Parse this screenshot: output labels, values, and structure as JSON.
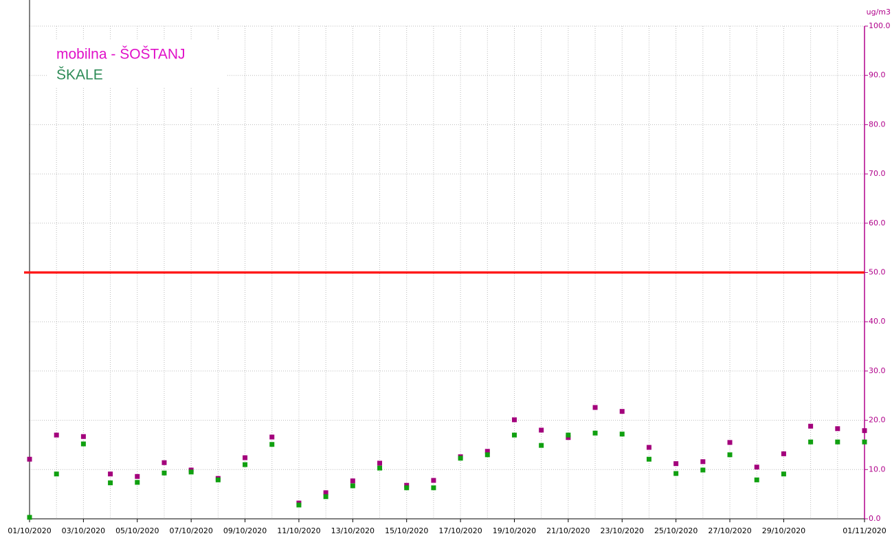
{
  "chart_data": {
    "type": "scatter",
    "y_unit": "ug/m3",
    "x": [
      "01/10/2020",
      "02/10/2020",
      "03/10/2020",
      "04/10/2020",
      "05/10/2020",
      "06/10/2020",
      "07/10/2020",
      "08/10/2020",
      "09/10/2020",
      "10/10/2020",
      "11/10/2020",
      "12/10/2020",
      "13/10/2020",
      "14/10/2020",
      "15/10/2020",
      "16/10/2020",
      "17/10/2020",
      "18/10/2020",
      "19/10/2020",
      "20/10/2020",
      "21/10/2020",
      "22/10/2020",
      "23/10/2020",
      "24/10/2020",
      "25/10/2020",
      "26/10/2020",
      "27/10/2020",
      "28/10/2020",
      "29/10/2020",
      "30/10/2020",
      "31/10/2020",
      "01/11/2020"
    ],
    "xticks": [
      "01/10/2020",
      "03/10/2020",
      "05/10/2020",
      "07/10/2020",
      "09/10/2020",
      "11/10/2020",
      "13/10/2020",
      "15/10/2020",
      "17/10/2020",
      "19/10/2020",
      "21/10/2020",
      "23/10/2020",
      "25/10/2020",
      "27/10/2020",
      "29/10/2020",
      "01/11/2020"
    ],
    "series": [
      {
        "name": "mobilna - ŠOŠTANJ",
        "color": "#a3007c",
        "legend_color": "#e010c8",
        "values": [
          12.1,
          17.0,
          16.7,
          9.1,
          8.6,
          11.4,
          9.9,
          8.2,
          12.4,
          16.6,
          3.2,
          5.3,
          7.7,
          11.3,
          6.8,
          7.8,
          12.6,
          13.7,
          20.1,
          18.0,
          16.5,
          22.6,
          21.8,
          14.5,
          11.2,
          11.6,
          15.5,
          10.5,
          13.2,
          18.8,
          18.3,
          17.9
        ]
      },
      {
        "name": "ŠKALE",
        "color": "#10a010",
        "legend_color": "#2e8b57",
        "values": [
          0.3,
          9.1,
          15.2,
          7.3,
          7.4,
          9.3,
          9.5,
          7.9,
          11.0,
          15.1,
          2.8,
          4.5,
          6.7,
          10.3,
          6.3,
          6.3,
          12.3,
          13.0,
          17.0,
          14.9,
          17.0,
          17.4,
          17.2,
          12.1,
          9.2,
          9.9,
          13.0,
          7.9,
          9.1,
          15.6,
          15.6,
          15.6
        ]
      }
    ],
    "limit_line": {
      "value": 50,
      "color": "#ff1a1a"
    },
    "ylim": [
      0,
      100
    ],
    "yticks": [
      {
        "value": 0,
        "label": "0.0"
      },
      {
        "value": 10,
        "label": "10.0"
      },
      {
        "value": 20,
        "label": "20.0"
      },
      {
        "value": 30,
        "label": "30.0"
      },
      {
        "value": 40,
        "label": "40.0"
      },
      {
        "value": 50,
        "label": "50.0"
      },
      {
        "value": 60,
        "label": "60.0"
      },
      {
        "value": 70,
        "label": "70.0"
      },
      {
        "value": 80,
        "label": "80.0"
      },
      {
        "value": 90,
        "label": "90.0"
      },
      {
        "value": 100,
        "label": "100.0"
      }
    ],
    "y_axis_side": "right",
    "axis_color": "#b0008a",
    "grid": true
  }
}
